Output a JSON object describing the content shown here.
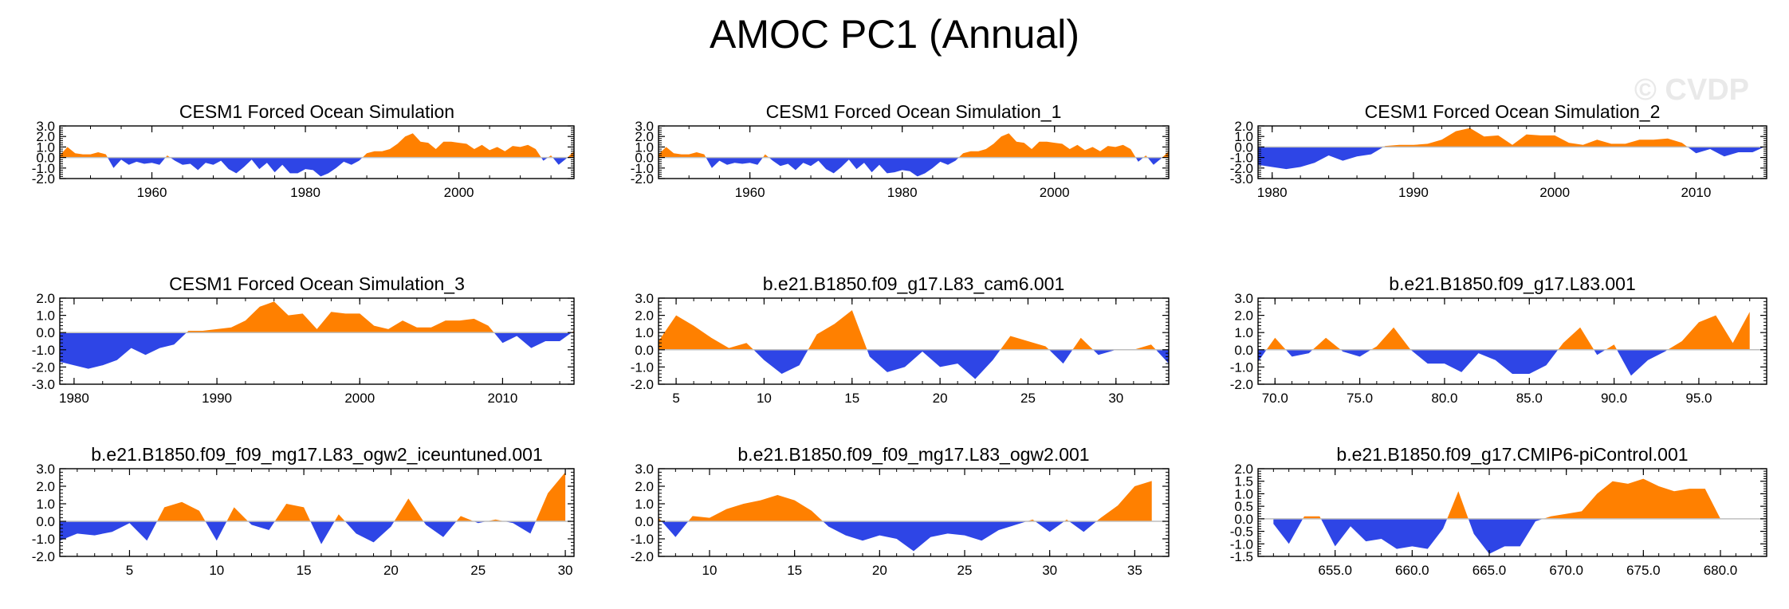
{
  "page": {
    "title": "AMOC PC1 (Annual)",
    "watermark": "© CVDP",
    "colors": {
      "positive": "#FF8000",
      "negative": "#2E45E6",
      "axis": "#000000",
      "zero_line": "#bfbfbf"
    }
  },
  "chart_data": [
    {
      "type": "area",
      "title": "CESM1 Forced Ocean Simulation",
      "xlim": [
        1948,
        2015
      ],
      "ylim": [
        -2.0,
        3.0
      ],
      "xticks": [
        1960,
        1980,
        2000
      ],
      "xtick_labels": [
        "1960",
        "1980",
        "2000"
      ],
      "yticks": [
        -2,
        -1,
        0,
        1,
        2,
        3
      ],
      "ytick_labels": [
        "-2.0",
        "-1.0",
        "0.0",
        "1.0",
        "2.0",
        "3.0"
      ],
      "x": [
        1948,
        1949,
        1950,
        1951,
        1952,
        1953,
        1954,
        1955,
        1956,
        1957,
        1958,
        1959,
        1960,
        1961,
        1962,
        1963,
        1964,
        1965,
        1966,
        1967,
        1968,
        1969,
        1970,
        1971,
        1972,
        1973,
        1974,
        1975,
        1976,
        1977,
        1978,
        1979,
        1980,
        1981,
        1982,
        1983,
        1984,
        1985,
        1986,
        1987,
        1988,
        1989,
        1990,
        1991,
        1992,
        1993,
        1994,
        1995,
        1996,
        1997,
        1998,
        1999,
        2000,
        2001,
        2002,
        2003,
        2004,
        2005,
        2006,
        2007,
        2008,
        2009,
        2010,
        2011,
        2012,
        2013,
        2014,
        2015
      ],
      "y": [
        0.2,
        1.0,
        0.4,
        0.3,
        0.3,
        0.5,
        0.3,
        -1.0,
        -0.2,
        -0.7,
        -0.4,
        -0.6,
        -0.5,
        -0.7,
        0.2,
        -0.3,
        -0.7,
        -0.6,
        -1.2,
        -0.5,
        -0.7,
        -0.3,
        -1.1,
        -1.5,
        -0.9,
        -0.2,
        -1.1,
        -0.5,
        -1.4,
        -0.7,
        -1.5,
        -1.5,
        -1.1,
        -1.2,
        -1.8,
        -1.5,
        -1.0,
        -0.4,
        -0.7,
        -0.3,
        0.4,
        0.6,
        0.6,
        0.8,
        1.3,
        2.0,
        2.3,
        1.5,
        1.4,
        0.8,
        1.5,
        1.5,
        1.4,
        1.3,
        0.8,
        1.2,
        0.7,
        1.0,
        0.6,
        1.1,
        1.0,
        1.2,
        0.8,
        -0.3,
        0.2,
        -0.7,
        -0.1,
        0.6
      ]
    },
    {
      "type": "area",
      "title": "CESM1 Forced Ocean Simulation_1",
      "xlim": [
        1948,
        2015
      ],
      "ylim": [
        -2.0,
        3.0
      ],
      "xticks": [
        1960,
        1980,
        2000
      ],
      "xtick_labels": [
        "1960",
        "1980",
        "2000"
      ],
      "yticks": [
        -2,
        -1,
        0,
        1,
        2,
        3
      ],
      "ytick_labels": [
        "-2.0",
        "-1.0",
        "0.0",
        "1.0",
        "2.0",
        "3.0"
      ],
      "x": [
        1948,
        1949,
        1950,
        1951,
        1952,
        1953,
        1954,
        1955,
        1956,
        1957,
        1958,
        1959,
        1960,
        1961,
        1962,
        1963,
        1964,
        1965,
        1966,
        1967,
        1968,
        1969,
        1970,
        1971,
        1972,
        1973,
        1974,
        1975,
        1976,
        1977,
        1978,
        1979,
        1980,
        1981,
        1982,
        1983,
        1984,
        1985,
        1986,
        1987,
        1988,
        1989,
        1990,
        1991,
        1992,
        1993,
        1994,
        1995,
        1996,
        1997,
        1998,
        1999,
        2000,
        2001,
        2002,
        2003,
        2004,
        2005,
        2006,
        2007,
        2008,
        2009,
        2010,
        2011,
        2012,
        2013,
        2014,
        2015
      ],
      "y": [
        0.3,
        1.0,
        0.4,
        0.3,
        0.3,
        0.5,
        0.3,
        -1.0,
        -0.3,
        -0.7,
        -0.5,
        -0.6,
        -0.5,
        -0.7,
        0.3,
        -0.3,
        -0.8,
        -0.6,
        -1.2,
        -0.5,
        -0.8,
        -0.3,
        -1.1,
        -1.5,
        -0.9,
        -0.2,
        -1.1,
        -0.5,
        -1.4,
        -0.7,
        -1.5,
        -1.4,
        -1.2,
        -1.3,
        -1.8,
        -1.5,
        -1.0,
        -0.4,
        -0.7,
        -0.3,
        0.4,
        0.6,
        0.6,
        0.8,
        1.3,
        2.0,
        2.3,
        1.5,
        1.4,
        0.8,
        1.5,
        1.5,
        1.4,
        1.3,
        0.8,
        1.2,
        0.7,
        1.0,
        0.6,
        1.1,
        1.0,
        1.2,
        0.8,
        -0.4,
        0.2,
        -0.7,
        -0.1,
        0.6
      ]
    },
    {
      "type": "area",
      "title": "CESM1 Forced Ocean Simulation_2",
      "xlim": [
        1979,
        2015
      ],
      "ylim": [
        -3.0,
        2.0
      ],
      "xticks": [
        1980,
        1990,
        2000,
        2010
      ],
      "xtick_labels": [
        "1980",
        "1990",
        "2000",
        "2010"
      ],
      "yticks": [
        -3,
        -2,
        -1,
        0,
        1,
        2
      ],
      "ytick_labels": [
        "-3.0",
        "-2.0",
        "-1.0",
        "0.0",
        "1.0",
        "2.0"
      ],
      "x": [
        1979,
        1980,
        1981,
        1982,
        1983,
        1984,
        1985,
        1986,
        1987,
        1988,
        1989,
        1990,
        1991,
        1992,
        1993,
        1994,
        1995,
        1996,
        1997,
        1998,
        1999,
        2000,
        2001,
        2002,
        2003,
        2004,
        2005,
        2006,
        2007,
        2008,
        2009,
        2010,
        2011,
        2012,
        2013,
        2014,
        2015
      ],
      "y": [
        -1.7,
        -1.9,
        -2.1,
        -1.9,
        -1.5,
        -0.8,
        -1.3,
        -0.9,
        -0.7,
        0.1,
        0.2,
        0.2,
        0.3,
        0.7,
        1.5,
        1.8,
        1.0,
        1.1,
        0.2,
        1.2,
        1.1,
        1.1,
        0.4,
        0.2,
        0.7,
        0.3,
        0.3,
        0.7,
        0.7,
        0.8,
        0.4,
        -0.6,
        -0.2,
        -0.9,
        -0.5,
        -0.5,
        0.1
      ]
    },
    {
      "type": "area",
      "title": "CESM1 Forced Ocean Simulation_3",
      "xlim": [
        1979,
        2015
      ],
      "ylim": [
        -3.0,
        2.0
      ],
      "xticks": [
        1980,
        1990,
        2000,
        2010
      ],
      "xtick_labels": [
        "1980",
        "1990",
        "2000",
        "2010"
      ],
      "yticks": [
        -3,
        -2,
        -1,
        0,
        1,
        2
      ],
      "ytick_labels": [
        "-3.0",
        "-2.0",
        "-1.0",
        "0.0",
        "1.0",
        "2.0"
      ],
      "x": [
        1979,
        1980,
        1981,
        1982,
        1983,
        1984,
        1985,
        1986,
        1987,
        1988,
        1989,
        1990,
        1991,
        1992,
        1993,
        1994,
        1995,
        1996,
        1997,
        1998,
        1999,
        2000,
        2001,
        2002,
        2003,
        2004,
        2005,
        2006,
        2007,
        2008,
        2009,
        2010,
        2011,
        2012,
        2013,
        2014,
        2015
      ],
      "y": [
        -1.7,
        -1.9,
        -2.1,
        -1.9,
        -1.6,
        -0.9,
        -1.3,
        -0.9,
        -0.7,
        0.1,
        0.1,
        0.2,
        0.3,
        0.7,
        1.5,
        1.8,
        1.0,
        1.1,
        0.2,
        1.2,
        1.1,
        1.1,
        0.4,
        0.2,
        0.7,
        0.3,
        0.3,
        0.7,
        0.7,
        0.8,
        0.4,
        -0.6,
        -0.2,
        -0.9,
        -0.5,
        -0.5,
        0.1
      ]
    },
    {
      "type": "area",
      "title": "b.e21.B1850.f09_g17.L83_cam6.001",
      "xlim": [
        4,
        33
      ],
      "ylim": [
        -2.0,
        3.0
      ],
      "xticks": [
        5,
        10,
        15,
        20,
        25,
        30
      ],
      "xtick_labels": [
        "5",
        "10",
        "15",
        "20",
        "25",
        "30"
      ],
      "yticks": [
        -2,
        -1,
        0,
        1,
        2,
        3
      ],
      "ytick_labels": [
        "-2.0",
        "-1.0",
        "0.0",
        "1.0",
        "2.0",
        "3.0"
      ],
      "x": [
        4,
        5,
        6,
        7,
        8,
        9,
        10,
        11,
        12,
        13,
        14,
        15,
        16,
        17,
        18,
        19,
        20,
        21,
        22,
        23,
        24,
        25,
        26,
        27,
        28,
        29,
        30,
        31,
        32,
        33
      ],
      "y": [
        0.5,
        2.0,
        1.4,
        0.7,
        0.1,
        0.4,
        -0.6,
        -1.4,
        -0.9,
        0.9,
        1.5,
        2.3,
        -0.4,
        -1.3,
        -1.0,
        -0.1,
        -1.0,
        -0.8,
        -1.7,
        -0.6,
        0.8,
        0.5,
        0.2,
        -0.8,
        0.7,
        -0.3,
        0.0,
        0.0,
        0.3,
        -0.8
      ]
    },
    {
      "type": "area",
      "title": "b.e21.B1850.f09_g17.L83.001",
      "xlim": [
        69,
        99
      ],
      "ylim": [
        -2.0,
        3.0
      ],
      "xticks": [
        70,
        75,
        80,
        85,
        90,
        95
      ],
      "xtick_labels": [
        "70.0",
        "75.0",
        "80.0",
        "85.0",
        "90.0",
        "95.0"
      ],
      "yticks": [
        -2,
        -1,
        0,
        1,
        2,
        3
      ],
      "ytick_labels": [
        "-2.0",
        "-1.0",
        "0.0",
        "1.0",
        "2.0",
        "3.0"
      ],
      "x": [
        69,
        70,
        71,
        72,
        73,
        74,
        75,
        76,
        77,
        78,
        79,
        80,
        81,
        82,
        83,
        84,
        85,
        86,
        87,
        88,
        89,
        90,
        91,
        92,
        93,
        94,
        95,
        96,
        97,
        98
      ],
      "y": [
        -0.7,
        0.7,
        -0.4,
        -0.2,
        0.7,
        -0.1,
        -0.4,
        0.2,
        1.3,
        0.0,
        -0.8,
        -0.8,
        -1.3,
        -0.2,
        -0.6,
        -1.4,
        -1.4,
        -0.9,
        0.4,
        1.3,
        -0.3,
        0.3,
        -1.5,
        -0.6,
        -0.1,
        0.5,
        1.6,
        2.0,
        0.4,
        2.2
      ]
    },
    {
      "type": "area",
      "title": "b.e21.B1850.f09_f09_mg17.L83_ogw2_iceuntuned.001",
      "xlim": [
        1,
        30.5
      ],
      "ylim": [
        -2.0,
        3.0
      ],
      "xticks": [
        5,
        10,
        15,
        20,
        25,
        30
      ],
      "xtick_labels": [
        "5",
        "10",
        "15",
        "20",
        "25",
        "30"
      ],
      "yticks": [
        -2,
        -1,
        0,
        1,
        2,
        3
      ],
      "ytick_labels": [
        "-2.0",
        "-1.0",
        "0.0",
        "1.0",
        "2.0",
        "3.0"
      ],
      "x": [
        1,
        2,
        3,
        4,
        5,
        6,
        7,
        8,
        9,
        10,
        11,
        12,
        13,
        14,
        15,
        16,
        17,
        18,
        19,
        20,
        21,
        22,
        23,
        24,
        25,
        26,
        27,
        28,
        29,
        30
      ],
      "y": [
        -1.1,
        -0.7,
        -0.8,
        -0.6,
        -0.1,
        -1.1,
        0.8,
        1.1,
        0.6,
        -1.1,
        0.8,
        -0.2,
        -0.5,
        1.0,
        0.8,
        -1.3,
        0.4,
        -0.7,
        -1.2,
        -0.3,
        1.3,
        -0.2,
        -0.9,
        0.3,
        -0.1,
        0.1,
        -0.1,
        -0.7,
        1.6,
        2.8
      ]
    },
    {
      "type": "area",
      "title": "b.e21.B1850.f09_f09_mg17.L83_ogw2.001",
      "xlim": [
        7,
        37
      ],
      "ylim": [
        -2.0,
        3.0
      ],
      "xticks": [
        10,
        15,
        20,
        25,
        30,
        35
      ],
      "xtick_labels": [
        "10",
        "15",
        "20",
        "25",
        "30",
        "35"
      ],
      "yticks": [
        -2,
        -1,
        0,
        1,
        2,
        3
      ],
      "ytick_labels": [
        "-2.0",
        "-1.0",
        "0.0",
        "1.0",
        "2.0",
        "3.0"
      ],
      "x": [
        7,
        8,
        9,
        10,
        11,
        12,
        13,
        14,
        15,
        16,
        17,
        18,
        19,
        20,
        21,
        22,
        23,
        24,
        25,
        26,
        27,
        28,
        29,
        30,
        31,
        32,
        33,
        34,
        35,
        36
      ],
      "y": [
        0.2,
        -0.9,
        0.3,
        0.2,
        0.7,
        1.0,
        1.2,
        1.5,
        1.2,
        0.6,
        -0.3,
        -0.8,
        -1.1,
        -0.8,
        -1.0,
        -1.7,
        -0.9,
        -0.7,
        -0.8,
        -1.1,
        -0.5,
        -0.2,
        0.1,
        -0.6,
        0.1,
        -0.6,
        0.2,
        0.9,
        2.0,
        2.3
      ]
    },
    {
      "type": "area",
      "title": "b.e21.B1850.f09_g17.CMIP6-piControl.001",
      "xlim": [
        650,
        683
      ],
      "ylim": [
        -1.5,
        2.0
      ],
      "xticks": [
        655,
        660,
        665,
        670,
        675,
        680
      ],
      "xtick_labels": [
        "655.0",
        "660.0",
        "665.0",
        "670.0",
        "675.0",
        "680.0"
      ],
      "yticks": [
        -1.5,
        -1,
        -0.5,
        0,
        0.5,
        1,
        1.5,
        2
      ],
      "ytick_labels": [
        "-1.5",
        "-1.0",
        "-0.5",
        "0.0",
        "0.5",
        "1.0",
        "1.5",
        "2.0"
      ],
      "x": [
        651,
        652,
        653,
        654,
        655,
        656,
        657,
        658,
        659,
        660,
        661,
        662,
        663,
        664,
        665,
        666,
        667,
        668,
        669,
        670,
        671,
        672,
        673,
        674,
        675,
        676,
        677,
        678,
        679,
        680
      ],
      "y": [
        -0.2,
        -1.0,
        0.1,
        0.1,
        -1.1,
        -0.3,
        -0.9,
        -0.8,
        -1.2,
        -1.1,
        -1.2,
        -0.4,
        1.1,
        -0.6,
        -1.4,
        -1.1,
        -1.1,
        -0.1,
        0.1,
        0.2,
        0.3,
        1.0,
        1.5,
        1.4,
        1.6,
        1.3,
        1.1,
        1.2,
        1.2,
        0.0
      ]
    }
  ]
}
